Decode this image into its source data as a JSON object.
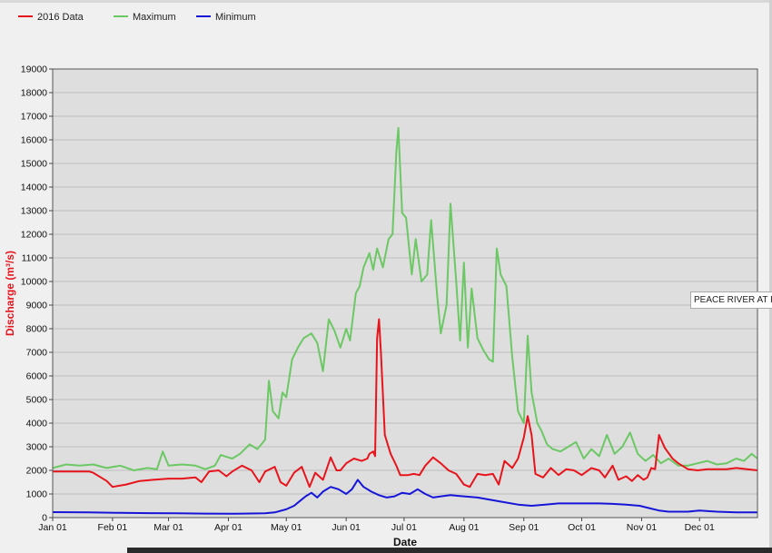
{
  "colors": {
    "background": "#f0f0f0",
    "plot_background": "#dedede",
    "grid": "#bdbdbd",
    "series_2016": "#e8141b",
    "series_max": "#6cc864",
    "series_min": "#1616d8",
    "ylabel": "#e8141b"
  },
  "tooltip": {
    "text": "PEACE RIVER AT PEA"
  },
  "chart_data": {
    "type": "line",
    "xlabel": "Date",
    "ylabel": "Discharge (m³/s)",
    "ylim": [
      0,
      19000
    ],
    "xlim": [
      "01-01",
      "12-31"
    ],
    "grid": true,
    "legend_position": "top-left",
    "y_ticks": [
      0,
      1000,
      2000,
      3000,
      4000,
      5000,
      6000,
      7000,
      8000,
      9000,
      10000,
      11000,
      12000,
      13000,
      14000,
      15000,
      16000,
      17000,
      18000,
      19000
    ],
    "x_ticks": [
      {
        "date": "01-01",
        "label": "Jan 01"
      },
      {
        "date": "02-01",
        "label": "Feb 01"
      },
      {
        "date": "03-01",
        "label": "Mar 01"
      },
      {
        "date": "04-01",
        "label": "Apr 01"
      },
      {
        "date": "05-01",
        "label": "May 01"
      },
      {
        "date": "06-01",
        "label": "Jun 01"
      },
      {
        "date": "07-01",
        "label": "Jul 01"
      },
      {
        "date": "08-01",
        "label": "Aug 01"
      },
      {
        "date": "09-01",
        "label": "Sep 01"
      },
      {
        "date": "10-01",
        "label": "Oct 01"
      },
      {
        "date": "11-01",
        "label": "Nov 01"
      },
      {
        "date": "12-01",
        "label": "Dec 01"
      }
    ],
    "series": [
      {
        "name": "2016 Data",
        "color": "#e8141b",
        "points": [
          [
            "01-01",
            1950
          ],
          [
            "01-20",
            1950
          ],
          [
            "01-22",
            1900
          ],
          [
            "01-29",
            1550
          ],
          [
            "02-01",
            1300
          ],
          [
            "02-08",
            1400
          ],
          [
            "02-15",
            1550
          ],
          [
            "02-22",
            1600
          ],
          [
            "03-01",
            1650
          ],
          [
            "03-08",
            1650
          ],
          [
            "03-15",
            1700
          ],
          [
            "03-18",
            1500
          ],
          [
            "03-22",
            1950
          ],
          [
            "03-27",
            2000
          ],
          [
            "03-31",
            1750
          ],
          [
            "04-03",
            1950
          ],
          [
            "04-08",
            2200
          ],
          [
            "04-13",
            2000
          ],
          [
            "04-17",
            1500
          ],
          [
            "04-20",
            1950
          ],
          [
            "04-25",
            2150
          ],
          [
            "04-28",
            1500
          ],
          [
            "05-01",
            1350
          ],
          [
            "05-05",
            1900
          ],
          [
            "05-09",
            2150
          ],
          [
            "05-13",
            1300
          ],
          [
            "05-16",
            1900
          ],
          [
            "05-20",
            1600
          ],
          [
            "05-24",
            2550
          ],
          [
            "05-27",
            2000
          ],
          [
            "05-29",
            2000
          ],
          [
            "06-01",
            2300
          ],
          [
            "06-05",
            2500
          ],
          [
            "06-09",
            2400
          ],
          [
            "06-12",
            2500
          ],
          [
            "06-13",
            2700
          ],
          [
            "06-15",
            2800
          ],
          [
            "06-16",
            2600
          ],
          [
            "06-17",
            7600
          ],
          [
            "06-18",
            8400
          ],
          [
            "06-19",
            7000
          ],
          [
            "06-21",
            3500
          ],
          [
            "06-24",
            2700
          ],
          [
            "06-27",
            2200
          ],
          [
            "06-29",
            1800
          ],
          [
            "07-03",
            1800
          ],
          [
            "07-06",
            1850
          ],
          [
            "07-09",
            1800
          ],
          [
            "07-12",
            2200
          ],
          [
            "07-16",
            2550
          ],
          [
            "07-20",
            2300
          ],
          [
            "07-24",
            2000
          ],
          [
            "07-28",
            1850
          ],
          [
            "08-01",
            1400
          ],
          [
            "08-04",
            1300
          ],
          [
            "08-08",
            1850
          ],
          [
            "08-12",
            1800
          ],
          [
            "08-16",
            1850
          ],
          [
            "08-19",
            1400
          ],
          [
            "08-22",
            2400
          ],
          [
            "08-26",
            2100
          ],
          [
            "08-29",
            2500
          ],
          [
            "09-01",
            3400
          ],
          [
            "09-03",
            4300
          ],
          [
            "09-05",
            3500
          ],
          [
            "09-07",
            1850
          ],
          [
            "09-11",
            1700
          ],
          [
            "09-15",
            2100
          ],
          [
            "09-19",
            1800
          ],
          [
            "09-23",
            2050
          ],
          [
            "09-27",
            2000
          ],
          [
            "10-01",
            1800
          ],
          [
            "10-06",
            2100
          ],
          [
            "10-10",
            2000
          ],
          [
            "10-13",
            1700
          ],
          [
            "10-17",
            2200
          ],
          [
            "10-20",
            1600
          ],
          [
            "10-24",
            1750
          ],
          [
            "10-27",
            1550
          ],
          [
            "10-30",
            1800
          ],
          [
            "11-02",
            1600
          ],
          [
            "11-04",
            1700
          ],
          [
            "11-06",
            2100
          ],
          [
            "11-08",
            2050
          ],
          [
            "11-10",
            3500
          ],
          [
            "11-13",
            2950
          ],
          [
            "11-17",
            2500
          ],
          [
            "11-20",
            2300
          ],
          [
            "11-25",
            2050
          ],
          [
            "11-30",
            2000
          ],
          [
            "12-05",
            2050
          ],
          [
            "12-10",
            2050
          ],
          [
            "12-15",
            2050
          ],
          [
            "12-20",
            2100
          ],
          [
            "12-31",
            2000
          ]
        ]
      },
      {
        "name": "Maximum",
        "color": "#6cc864",
        "points": [
          [
            "01-01",
            2100
          ],
          [
            "01-08",
            2250
          ],
          [
            "01-15",
            2200
          ],
          [
            "01-22",
            2250
          ],
          [
            "01-29",
            2100
          ],
          [
            "02-05",
            2200
          ],
          [
            "02-12",
            2000
          ],
          [
            "02-19",
            2100
          ],
          [
            "02-24",
            2050
          ],
          [
            "02-27",
            2800
          ],
          [
            "03-01",
            2200
          ],
          [
            "03-08",
            2250
          ],
          [
            "03-15",
            2200
          ],
          [
            "03-20",
            2050
          ],
          [
            "03-25",
            2200
          ],
          [
            "03-28",
            2650
          ],
          [
            "04-03",
            2500
          ],
          [
            "04-07",
            2700
          ],
          [
            "04-12",
            3100
          ],
          [
            "04-16",
            2900
          ],
          [
            "04-20",
            3300
          ],
          [
            "04-22",
            5800
          ],
          [
            "04-24",
            4500
          ],
          [
            "04-27",
            4200
          ],
          [
            "04-29",
            5300
          ],
          [
            "05-01",
            5100
          ],
          [
            "05-04",
            6700
          ],
          [
            "05-07",
            7200
          ],
          [
            "05-10",
            7600
          ],
          [
            "05-14",
            7800
          ],
          [
            "05-17",
            7400
          ],
          [
            "05-20",
            6200
          ],
          [
            "05-23",
            8400
          ],
          [
            "05-26",
            7900
          ],
          [
            "05-29",
            7200
          ],
          [
            "06-01",
            8000
          ],
          [
            "06-03",
            7500
          ],
          [
            "06-06",
            9500
          ],
          [
            "06-08",
            9800
          ],
          [
            "06-10",
            10600
          ],
          [
            "06-13",
            11200
          ],
          [
            "06-15",
            10500
          ],
          [
            "06-17",
            11400
          ],
          [
            "06-20",
            10600
          ],
          [
            "06-23",
            11800
          ],
          [
            "06-25",
            12000
          ],
          [
            "06-27",
            15500
          ],
          [
            "06-28",
            16500
          ],
          [
            "06-30",
            12900
          ],
          [
            "07-02",
            12700
          ],
          [
            "07-05",
            10300
          ],
          [
            "07-07",
            11800
          ],
          [
            "07-10",
            10000
          ],
          [
            "07-13",
            10300
          ],
          [
            "07-15",
            12600
          ],
          [
            "07-18",
            9500
          ],
          [
            "07-20",
            7800
          ],
          [
            "07-23",
            9000
          ],
          [
            "07-25",
            13300
          ],
          [
            "07-28",
            10000
          ],
          [
            "07-30",
            7500
          ],
          [
            "08-01",
            10800
          ],
          [
            "08-03",
            7200
          ],
          [
            "08-05",
            9700
          ],
          [
            "08-08",
            7600
          ],
          [
            "08-11",
            7100
          ],
          [
            "08-14",
            6700
          ],
          [
            "08-16",
            6600
          ],
          [
            "08-18",
            11400
          ],
          [
            "08-20",
            10300
          ],
          [
            "08-23",
            9800
          ],
          [
            "08-26",
            6800
          ],
          [
            "08-29",
            4500
          ],
          [
            "09-01",
            4000
          ],
          [
            "09-03",
            7700
          ],
          [
            "09-05",
            5300
          ],
          [
            "09-08",
            4000
          ],
          [
            "09-10",
            3700
          ],
          [
            "09-13",
            3100
          ],
          [
            "09-16",
            2900
          ],
          [
            "09-20",
            2800
          ],
          [
            "09-24",
            3000
          ],
          [
            "09-28",
            3200
          ],
          [
            "10-02",
            2500
          ],
          [
            "10-06",
            2900
          ],
          [
            "10-10",
            2600
          ],
          [
            "10-14",
            3500
          ],
          [
            "10-18",
            2700
          ],
          [
            "10-22",
            3000
          ],
          [
            "10-26",
            3600
          ],
          [
            "10-30",
            2700
          ],
          [
            "11-03",
            2400
          ],
          [
            "11-07",
            2650
          ],
          [
            "11-11",
            2300
          ],
          [
            "11-15",
            2500
          ],
          [
            "11-20",
            2200
          ],
          [
            "11-25",
            2200
          ],
          [
            "11-30",
            2300
          ],
          [
            "12-05",
            2400
          ],
          [
            "12-10",
            2250
          ],
          [
            "12-15",
            2300
          ],
          [
            "12-20",
            2500
          ],
          [
            "12-24",
            2400
          ],
          [
            "12-28",
            2700
          ],
          [
            "12-31",
            2500
          ]
        ]
      },
      {
        "name": "Minimum",
        "color": "#1616d8",
        "points": [
          [
            "01-01",
            230
          ],
          [
            "01-20",
            220
          ],
          [
            "02-05",
            200
          ],
          [
            "02-20",
            190
          ],
          [
            "03-05",
            180
          ],
          [
            "03-20",
            170
          ],
          [
            "04-05",
            160
          ],
          [
            "04-20",
            180
          ],
          [
            "04-25",
            220
          ],
          [
            "05-01",
            350
          ],
          [
            "05-05",
            500
          ],
          [
            "05-08",
            700
          ],
          [
            "05-11",
            900
          ],
          [
            "05-14",
            1050
          ],
          [
            "05-17",
            850
          ],
          [
            "05-20",
            1100
          ],
          [
            "05-24",
            1300
          ],
          [
            "05-28",
            1200
          ],
          [
            "06-01",
            1000
          ],
          [
            "06-04",
            1200
          ],
          [
            "06-07",
            1600
          ],
          [
            "06-10",
            1300
          ],
          [
            "06-14",
            1100
          ],
          [
            "06-18",
            950
          ],
          [
            "06-22",
            850
          ],
          [
            "06-26",
            900
          ],
          [
            "06-30",
            1050
          ],
          [
            "07-04",
            1000
          ],
          [
            "07-08",
            1200
          ],
          [
            "07-12",
            1000
          ],
          [
            "07-16",
            850
          ],
          [
            "07-20",
            900
          ],
          [
            "07-25",
            950
          ],
          [
            "08-01",
            900
          ],
          [
            "08-08",
            850
          ],
          [
            "08-15",
            750
          ],
          [
            "08-22",
            650
          ],
          [
            "08-29",
            550
          ],
          [
            "09-05",
            500
          ],
          [
            "09-12",
            550
          ],
          [
            "09-19",
            600
          ],
          [
            "09-26",
            600
          ],
          [
            "10-03",
            600
          ],
          [
            "10-10",
            600
          ],
          [
            "10-17",
            580
          ],
          [
            "10-24",
            550
          ],
          [
            "10-31",
            500
          ],
          [
            "11-05",
            400
          ],
          [
            "11-10",
            300
          ],
          [
            "11-15",
            250
          ],
          [
            "11-20",
            250
          ],
          [
            "11-25",
            250
          ],
          [
            "12-01",
            300
          ],
          [
            "12-10",
            250
          ],
          [
            "12-20",
            220
          ],
          [
            "12-31",
            220
          ]
        ]
      }
    ]
  }
}
